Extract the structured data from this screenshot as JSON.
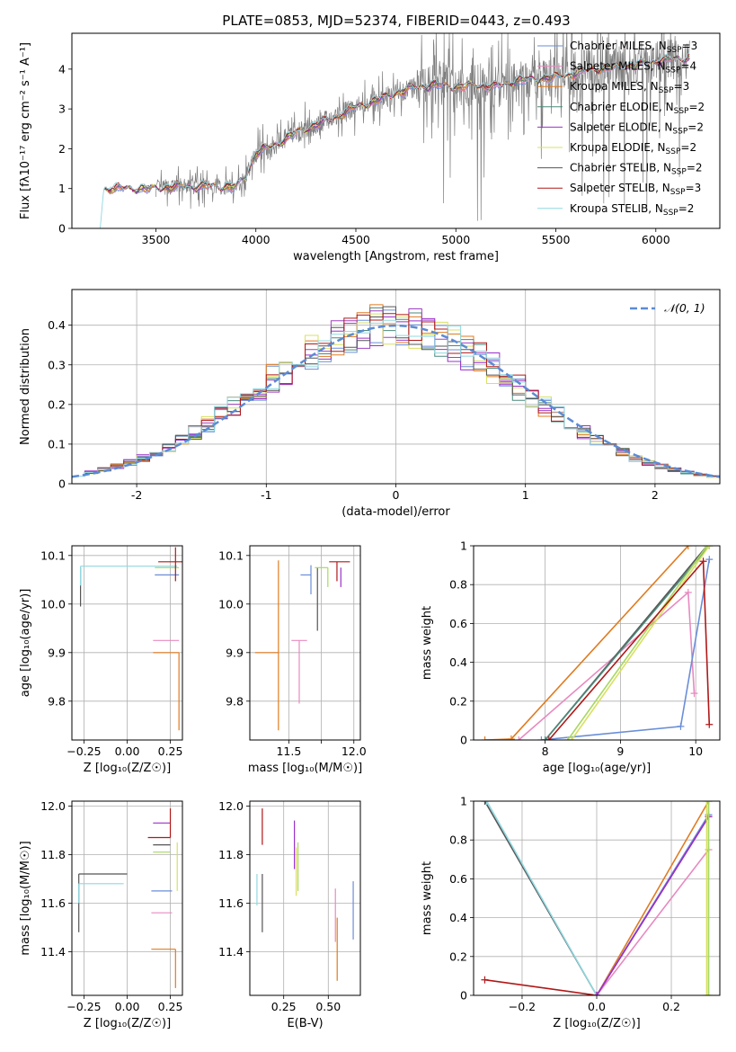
{
  "figure_title": "PLATE=0853, MJD=52374, FIBERID=0443, z=0.493",
  "colors": {
    "Chabrier MILES": "#6a8ed8",
    "Salpeter MILES": "#9b30c8",
    "Kroupa MILES": "#e07b20",
    "Chabrier ELODIE": "#4a8a7a",
    "Salpeter ELODIE": "#a040c0",
    "Kroupa ELODIE": "#d8e060",
    "Chabrier STELIB": "#555555",
    "Salpeter STELIB": "#b01818",
    "Kroupa STELIB": "#90d8e0",
    "Pink": "#e88ac0",
    "Green": "#a8d860",
    "Gaussian": "#5b8bd4"
  },
  "chart_data": [
    {
      "id": "spectrum",
      "type": "line",
      "xlabel": "wavelength [Angstrom, rest frame]",
      "ylabel": "Flux [fλ10⁻¹⁷ erg cm⁻² s⁻¹ A⁻¹]",
      "xlim": [
        3080,
        6320
      ],
      "ylim": [
        0,
        4.9
      ],
      "xticks": [
        3500,
        4000,
        4500,
        5000,
        5500,
        6000
      ],
      "yticks": [
        0,
        1,
        2,
        3,
        4
      ],
      "grid": false,
      "legend_location": "top-right",
      "legend": [
        {
          "label": "Chabrier MILES, N",
          "sub": "SSP",
          "suffix": "=3",
          "color": "#6a8ed8"
        },
        {
          "label": "Salpeter MILES, N",
          "sub": "SSP",
          "suffix": "=4",
          "color": "#e88ac0"
        },
        {
          "label": "Kroupa MILES, N",
          "sub": "SSP",
          "suffix": "=3",
          "color": "#e07b20"
        },
        {
          "label": "Chabrier ELODIE, N",
          "sub": "SSP",
          "suffix": "=2",
          "color": "#4a8a7a"
        },
        {
          "label": "Salpeter ELODIE, N",
          "sub": "SSP",
          "suffix": "=2",
          "color": "#9b30c8"
        },
        {
          "label": "Kroupa ELODIE, N",
          "sub": "SSP",
          "suffix": "=2",
          "color": "#d8e060"
        },
        {
          "label": "Chabrier STELIB, N",
          "sub": "SSP",
          "suffix": "=2",
          "color": "#555555"
        },
        {
          "label": "Salpeter STELIB, N",
          "sub": "SSP",
          "suffix": "=3",
          "color": "#b01818"
        },
        {
          "label": "Kroupa STELIB, N",
          "sub": "SSP",
          "suffix": "=2",
          "color": "#90d8e0"
        }
      ],
      "model_continuum": {
        "x": [
          3220,
          3240,
          3400,
          3500,
          3600,
          3700,
          3800,
          3900,
          3950,
          4000,
          4100,
          4200,
          4300,
          4400,
          4500,
          4600,
          4700,
          4800,
          4900,
          5000,
          5100,
          5200,
          5300,
          5400,
          5500,
          5600,
          5700,
          5800,
          5900,
          6000,
          6100,
          6170
        ],
        "y": [
          0.0,
          1.0,
          1.0,
          1.0,
          1.05,
          1.05,
          1.05,
          1.05,
          1.3,
          1.9,
          2.1,
          2.4,
          2.6,
          2.8,
          3.05,
          3.2,
          3.4,
          3.55,
          3.6,
          3.55,
          3.6,
          3.55,
          3.7,
          3.75,
          3.8,
          3.9,
          4.0,
          4.05,
          4.1,
          4.2,
          4.25,
          4.3
        ]
      }
    },
    {
      "id": "residuals",
      "type": "histogram",
      "xlabel": "(data-model)/error",
      "ylabel": "Normed distribution",
      "xlim": [
        -2.5,
        2.5
      ],
      "ylim": [
        0,
        0.49
      ],
      "xticks": [
        -2,
        -1,
        0,
        1,
        2
      ],
      "yticks": [
        0.0,
        0.1,
        0.2,
        0.3,
        0.4
      ],
      "grid": true,
      "legend_location": "top-right",
      "legend": [
        {
          "label": "𝒩(0, 1)",
          "color": "#5b8bd4",
          "style": "dashed"
        }
      ],
      "bin_width": 0.1,
      "bin_start": -2.5,
      "reference": "normal(0,1)"
    },
    {
      "id": "age_vs_Z",
      "type": "scatter",
      "xlabel": "Z [log₁₀(Z/Z☉)]",
      "ylabel": "age  [log₁₀(age/yr)]",
      "xlim": [
        -0.32,
        0.32
      ],
      "ylim": [
        9.72,
        10.12
      ],
      "xticks": [
        -0.25,
        0.0,
        0.25
      ],
      "xticklabels": [
        "−0.25",
        "0.00",
        "0.25"
      ],
      "yticks": [
        9.8,
        9.9,
        10.0,
        10.1
      ],
      "yticklabels": [
        "9.8",
        "9.9",
        "10.0",
        "10.1"
      ],
      "grid": true,
      "points": [
        {
          "x": -0.27,
          "y": 10.075,
          "xerr": [
            0.0,
            0.0
          ],
          "yerr": [
            0.08,
            0.0
          ],
          "color": "#555555"
        },
        {
          "x": -0.27,
          "y": 10.078,
          "xerr": [
            0.0,
            0.56
          ],
          "yerr": [
            0.04,
            0.0
          ],
          "color": "#90d8e0"
        },
        {
          "x": 0.28,
          "y": 10.075,
          "xerr": [
            0.12,
            0.02
          ],
          "yerr": [
            0.0,
            0.0
          ],
          "color": "#a8d860"
        },
        {
          "x": 0.28,
          "y": 10.06,
          "xerr": [
            0.12,
            0.02
          ],
          "yerr": [
            0.0,
            0.0
          ],
          "color": "#6a8ed8"
        },
        {
          "x": 0.28,
          "y": 10.087,
          "xerr": [
            0.1,
            0.04
          ],
          "yerr": [
            0.04,
            0.03
          ],
          "color": "#b01818"
        },
        {
          "x": 0.3,
          "y": 9.925,
          "xerr": [
            0.15,
            0.0
          ],
          "yerr": [
            0.0,
            0.0
          ],
          "color": "#e88ac0"
        },
        {
          "x": 0.3,
          "y": 9.9,
          "xerr": [
            0.15,
            0.0
          ],
          "yerr": [
            0.16,
            0.0
          ],
          "color": "#e07b20"
        }
      ]
    },
    {
      "id": "age_vs_mass",
      "type": "scatter",
      "xlabel": "mass [log₁₀(M/M☉)]",
      "ylabel": "",
      "xlim": [
        11.2,
        12.05
      ],
      "ylim": [
        9.72,
        10.12
      ],
      "xticks": [
        11.5,
        11.75,
        12.0
      ],
      "xticklabels": [
        "11.5",
        "",
        "12.0"
      ],
      "yticks": [
        9.8,
        9.9,
        10.0,
        10.1
      ],
      "yticklabels": [
        "9.8",
        "9.9",
        "10.0",
        "10.1"
      ],
      "grid": true,
      "points": [
        {
          "x": 11.42,
          "y": 9.9,
          "xerr": [
            0.18,
            0.0
          ],
          "yerr": [
            0.16,
            0.19
          ],
          "color": "#e07b20"
        },
        {
          "x": 11.58,
          "y": 9.925,
          "xerr": [
            0.06,
            0.06
          ],
          "yerr": [
            0.13,
            0.0
          ],
          "color": "#e88ac0"
        },
        {
          "x": 11.67,
          "y": 10.06,
          "xerr": [
            0.08,
            0.0
          ],
          "yerr": [
            0.04,
            0.02
          ],
          "color": "#6a8ed8"
        },
        {
          "x": 11.72,
          "y": 10.075,
          "xerr": [
            0.0,
            0.0
          ],
          "yerr": [
            0.13,
            0.0
          ],
          "color": "#555555"
        },
        {
          "x": 11.8,
          "y": 10.075,
          "xerr": [
            0.1,
            0.0
          ],
          "yerr": [
            0.04,
            0.0
          ],
          "color": "#a8d860"
        },
        {
          "x": 11.87,
          "y": 10.087,
          "xerr": [
            0.06,
            0.1
          ],
          "yerr": [
            0.04,
            0.0
          ],
          "color": "#b01818"
        },
        {
          "x": 11.9,
          "y": 10.075,
          "xerr": [
            0.0,
            0.0
          ],
          "yerr": [
            0.04,
            0.0
          ],
          "color": "#9b30c8"
        }
      ]
    },
    {
      "id": "mass_weight_vs_age",
      "type": "line",
      "xlabel": "age  [log₁₀(age/yr)]",
      "ylabel": "mass weight",
      "xlim": [
        7.05,
        10.32
      ],
      "ylim": [
        0.0,
        1.0
      ],
      "xticks": [
        8,
        9,
        10
      ],
      "yticks": [
        0.0,
        0.2,
        0.4,
        0.6,
        0.8,
        1.0
      ],
      "grid": true,
      "series": [
        {
          "color": "#e07b20",
          "x": [
            7.2,
            7.55,
            9.9
          ],
          "y": [
            0.0,
            0.005,
            1.0
          ]
        },
        {
          "color": "#e88ac0",
          "x": [
            7.65,
            9.9,
            9.98
          ],
          "y": [
            0.0,
            0.76,
            0.24
          ]
        },
        {
          "color": "#6a8ed8",
          "x": [
            7.95,
            9.8,
            10.18
          ],
          "y": [
            0.0,
            0.07,
            0.93
          ]
        },
        {
          "color": "#555555",
          "x": [
            8.0,
            10.15
          ],
          "y": [
            0.0,
            1.0
          ]
        },
        {
          "color": "#4a8a7a",
          "x": [
            8.0,
            10.18
          ],
          "y": [
            0.0,
            1.0
          ]
        },
        {
          "color": "#a8d860",
          "x": [
            8.3,
            10.15
          ],
          "y": [
            0.0,
            1.0
          ]
        },
        {
          "color": "#d8e060",
          "x": [
            8.35,
            10.18
          ],
          "y": [
            0.0,
            1.0
          ]
        },
        {
          "color": "#b01818",
          "x": [
            8.05,
            10.1,
            10.18
          ],
          "y": [
            0.0,
            0.92,
            0.08
          ]
        }
      ]
    },
    {
      "id": "mass_vs_Z",
      "type": "scatter",
      "xlabel": "Z [log₁₀(Z/Z☉)]",
      "ylabel": "mass [log₁₀(M/M☉)]",
      "xlim": [
        -0.32,
        0.32
      ],
      "ylim": [
        11.22,
        12.02
      ],
      "xticks": [
        -0.25,
        0.0,
        0.25
      ],
      "xticklabels": [
        "−0.25",
        "0.00",
        "0.25"
      ],
      "yticks": [
        11.4,
        11.6,
        11.8,
        12.0
      ],
      "yticklabels": [
        "11.4",
        "11.6",
        "11.8",
        "12.0"
      ],
      "grid": true,
      "points": [
        {
          "x": -0.28,
          "y": 11.72,
          "xerr": [
            0.0,
            0.28
          ],
          "yerr": [
            0.24,
            0.0
          ],
          "color": "#555555"
        },
        {
          "x": -0.28,
          "y": 11.68,
          "xerr": [
            0.0,
            0.26
          ],
          "yerr": [
            0.08,
            0.0
          ],
          "color": "#90d8e0"
        },
        {
          "x": 0.25,
          "y": 11.93,
          "xerr": [
            0.1,
            0.0
          ],
          "yerr": [
            0.0,
            0.0
          ],
          "color": "#9b30c8"
        },
        {
          "x": 0.25,
          "y": 11.87,
          "xerr": [
            0.13,
            0.0
          ],
          "yerr": [
            0.0,
            0.12
          ],
          "color": "#b01818"
        },
        {
          "x": 0.25,
          "y": 11.84,
          "xerr": [
            0.1,
            0.0
          ],
          "yerr": [
            0.0,
            0.0
          ],
          "color": "#555555"
        },
        {
          "x": 0.25,
          "y": 11.81,
          "xerr": [
            0.1,
            0.0
          ],
          "yerr": [
            0.0,
            0.0
          ],
          "color": "#a8d860"
        },
        {
          "x": 0.29,
          "y": 11.8,
          "xerr": [
            0.0,
            0.0
          ],
          "yerr": [
            0.15,
            0.05
          ],
          "color": "#d8e060"
        },
        {
          "x": 0.26,
          "y": 11.65,
          "xerr": [
            0.12,
            0.0
          ],
          "yerr": [
            0.0,
            0.0
          ],
          "color": "#6a8ed8"
        },
        {
          "x": 0.26,
          "y": 11.56,
          "xerr": [
            0.12,
            0.0
          ],
          "yerr": [
            0.0,
            0.0
          ],
          "color": "#e88ac0"
        },
        {
          "x": 0.28,
          "y": 11.41,
          "xerr": [
            0.14,
            0.0
          ],
          "yerr": [
            0.16,
            0.0
          ],
          "color": "#e07b20"
        }
      ]
    },
    {
      "id": "mass_vs_ebv",
      "type": "scatter",
      "xlabel": "E(B-V)",
      "ylabel": "",
      "xlim": [
        0.06,
        0.68
      ],
      "ylim": [
        11.22,
        12.02
      ],
      "xticks": [
        0.25,
        0.5
      ],
      "xticklabels": [
        "0.25",
        "0.50"
      ],
      "yticks": [
        11.4,
        11.6,
        11.8,
        12.0
      ],
      "yticklabels": [
        "11.4",
        "11.6",
        "11.8",
        "12.0"
      ],
      "grid": true,
      "points": [
        {
          "x": 0.1,
          "y": 11.65,
          "yerr": [
            0.06,
            0.07
          ],
          "color": "#90d8e0"
        },
        {
          "x": 0.13,
          "y": 11.6,
          "yerr": [
            0.12,
            0.12
          ],
          "color": "#555555"
        },
        {
          "x": 0.13,
          "y": 11.91,
          "yerr": [
            0.07,
            0.08
          ],
          "color": "#b01818"
        },
        {
          "x": 0.31,
          "y": 11.84,
          "yerr": [
            0.1,
            0.1
          ],
          "color": "#9b30c8"
        },
        {
          "x": 0.32,
          "y": 11.73,
          "yerr": [
            0.1,
            0.1
          ],
          "color": "#d8e060"
        },
        {
          "x": 0.33,
          "y": 11.75,
          "yerr": [
            0.1,
            0.1
          ],
          "color": "#a8d860"
        },
        {
          "x": 0.54,
          "y": 11.55,
          "yerr": [
            0.11,
            0.11
          ],
          "color": "#e88ac0"
        },
        {
          "x": 0.55,
          "y": 11.41,
          "yerr": [
            0.13,
            0.13
          ],
          "color": "#e07b20"
        },
        {
          "x": 0.64,
          "y": 11.57,
          "yerr": [
            0.12,
            0.12
          ],
          "color": "#6a8ed8"
        }
      ]
    },
    {
      "id": "mass_weight_vs_Z",
      "type": "line",
      "xlabel": "Z [log₁₀(Z/Z☉)]",
      "ylabel": "mass weight",
      "xlim": [
        -0.33,
        0.33
      ],
      "ylim": [
        0.0,
        1.0
      ],
      "xticks": [
        -0.2,
        0.0,
        0.2
      ],
      "xticklabels": [
        "−0.2",
        "0.0",
        "0.2"
      ],
      "yticks": [
        0.0,
        0.2,
        0.4,
        0.6,
        0.8,
        1.0
      ],
      "grid": true,
      "series": [
        {
          "color": "#555555",
          "x": [
            -0.3,
            0.0
          ],
          "y": [
            1.0,
            0.0
          ]
        },
        {
          "color": "#90d8e0",
          "x": [
            -0.295,
            0.0
          ],
          "y": [
            1.0,
            0.0
          ]
        },
        {
          "color": "#b01818",
          "x": [
            -0.3,
            0.0,
            0.3
          ],
          "y": [
            0.08,
            0.0,
            0.92
          ]
        },
        {
          "color": "#e07b20",
          "x": [
            0.0,
            0.3
          ],
          "y": [
            0.0,
            1.0
          ]
        },
        {
          "color": "#e88ac0",
          "x": [
            0.0,
            0.3
          ],
          "y": [
            0.0,
            0.75
          ]
        },
        {
          "color": "#6a8ed8",
          "x": [
            0.0,
            0.3
          ],
          "y": [
            0.0,
            0.93
          ]
        },
        {
          "color": "#9b30c8",
          "x": [
            0.0,
            0.3
          ],
          "y": [
            0.0,
            0.92
          ]
        },
        {
          "color": "#a8d860",
          "x": [
            0.3,
            0.3
          ],
          "y": [
            0.0,
            1.0
          ]
        },
        {
          "color": "#d8e060",
          "x": [
            0.295,
            0.295
          ],
          "y": [
            0.0,
            1.0
          ]
        }
      ]
    }
  ]
}
